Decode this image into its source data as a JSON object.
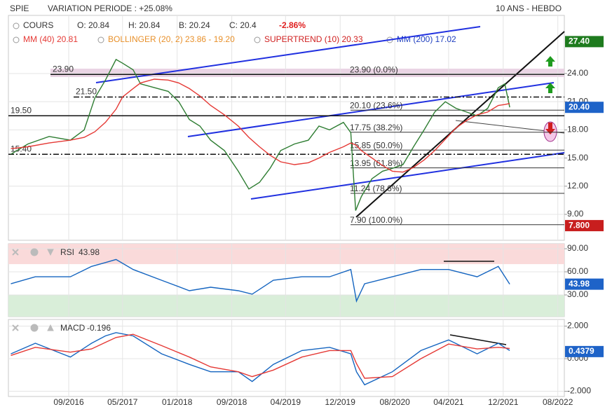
{
  "header": {
    "symbol": "SPIE",
    "variation": "VARIATION PERIODE : +25.08%",
    "period": "10 ANS - HEBDO"
  },
  "legend": {
    "open": "O: 20.84",
    "high": "H: 20.84",
    "low": "B: 20.24",
    "close": "C: 20.4",
    "change": "-2.86%",
    "bollinger": "BOLLINGER (20, 2) 23.86 - 19.20",
    "supertrend": "SUPERTREND (10) 20.33",
    "mm200": "MM (200) 17.02"
  },
  "chart_data": [
    {
      "type": "line",
      "x": [
        2015.96,
        2016.17,
        2016.43,
        2016.69,
        2016.86,
        2016.99,
        2017.12,
        2017.25,
        2017.33,
        2017.46,
        2017.55,
        2017.72,
        2017.89,
        2018.02,
        2018.15,
        2018.28,
        2018.41,
        2018.58,
        2018.75,
        2018.88,
        2019.01,
        2019.14,
        2019.27,
        2019.44,
        2019.61,
        2019.74,
        2019.87,
        2020.04,
        2020.13,
        2020.19,
        2020.26,
        2020.39,
        2020.52,
        2020.64,
        2020.77,
        2020.9,
        2021.03,
        2021.16,
        2021.29,
        2021.42,
        2021.55,
        2021.68,
        2021.81,
        2021.94,
        2022.02,
        2022.08
      ],
      "series": [
        {
          "name": "COURS",
          "color": "#2e7d32",
          "values": [
            15.4,
            16.5,
            17.3,
            16.9,
            18.0,
            21.4,
            23.3,
            25.5,
            25.1,
            24.4,
            22.9,
            22.5,
            22.1,
            21.0,
            19.1,
            18.4,
            16.9,
            15.8,
            13.6,
            11.7,
            12.4,
            13.9,
            15.8,
            16.5,
            16.9,
            18.4,
            18.0,
            18.8,
            17.7,
            9.4,
            10.9,
            12.8,
            13.6,
            13.9,
            14.3,
            16.2,
            18.0,
            19.9,
            21.0,
            20.3,
            19.9,
            19.5,
            20.3,
            22.5,
            22.9,
            20.4
          ]
        },
        {
          "name": "MM (40) 20.81",
          "color": "#e53935",
          "values": [
            16.0,
            16.2,
            16.6,
            16.9,
            17.2,
            17.8,
            18.8,
            20.2,
            21.5,
            22.4,
            23.0,
            23.4,
            23.3,
            23.0,
            22.4,
            21.6,
            20.6,
            19.6,
            18.4,
            17.2,
            16.2,
            15.3,
            14.6,
            14.3,
            14.5,
            15.0,
            15.6,
            16.2,
            16.6,
            16.4,
            15.8,
            15.0,
            14.2,
            13.6,
            13.5,
            14.0,
            14.8,
            15.8,
            17.0,
            18.2,
            19.0,
            19.6,
            19.9,
            20.6,
            20.7,
            20.81
          ]
        }
      ],
      "xlim": [
        2015.93,
        2022.75
      ],
      "ylim": [
        6.24,
        30.19
      ],
      "yticks": [
        {
          "value": 9,
          "label": "9.00"
        },
        {
          "value": 12,
          "label": "12.00"
        },
        {
          "value": 15,
          "label": "15.00"
        },
        {
          "value": 18,
          "label": "18.00"
        },
        {
          "value": 21,
          "label": "21.00"
        },
        {
          "value": 24,
          "label": "24.00"
        }
      ],
      "grid": true,
      "levels": [
        {
          "value": 23.9,
          "label": "23.90",
          "line_style": "solid"
        },
        {
          "value": 21.5,
          "label": "21.50",
          "line_style": "dashdot"
        },
        {
          "value": 19.5,
          "label": "19.50",
          "line_style": "solid"
        },
        {
          "value": 15.4,
          "label": "15.40",
          "line_style": "dashdot"
        }
      ],
      "fibonacci": [
        {
          "value": 23.9,
          "label": "23.90 (0.0%)"
        },
        {
          "value": 20.1,
          "label": "20.10 (23.6%)"
        },
        {
          "value": 17.75,
          "label": "17.75 (38.2%)"
        },
        {
          "value": 15.85,
          "label": "15.85 (50.0%)"
        },
        {
          "value": 13.95,
          "label": "13.95 (61.8%)"
        },
        {
          "value": 11.24,
          "label": "11.24 (78.6%)"
        },
        {
          "value": 7.9,
          "label": "7.90 (100.0%)"
        }
      ],
      "price_tags": [
        {
          "value": 27.4,
          "label": "27.40",
          "color": "#1e7b1e"
        },
        {
          "value": 20.4,
          "label": "20.40",
          "color": "#1e63c8"
        },
        {
          "value": 7.8,
          "label": "7.800",
          "color": "#c81e1e"
        }
      ]
    },
    {
      "type": "line",
      "title": "RSI",
      "x": [
        2015.96,
        2016.26,
        2016.69,
        2016.95,
        2017.12,
        2017.25,
        2017.46,
        2017.81,
        2018.15,
        2018.41,
        2018.75,
        2018.92,
        2019.18,
        2019.53,
        2019.87,
        2020.13,
        2020.2,
        2020.3,
        2020.64,
        2020.99,
        2021.33,
        2021.68,
        2021.94,
        2022.08
      ],
      "series": [
        {
          "name": "RSI",
          "color": "#1565c0",
          "values": [
            44.5,
            53.6,
            53.6,
            67,
            72,
            76,
            63,
            49,
            35.5,
            40,
            35.5,
            31,
            49,
            53.6,
            53.6,
            63,
            22,
            44.5,
            53.6,
            63,
            63,
            53.6,
            67,
            43.98
          ]
        }
      ],
      "value_tag": 43.98,
      "xlim": [
        2015.93,
        2022.75
      ],
      "ylim": [
        1.8,
        96.4
      ],
      "yticks": [
        {
          "value": 30,
          "label": "30.00"
        },
        {
          "value": 60,
          "label": "60.00"
        },
        {
          "value": 90,
          "label": "90.00"
        }
      ],
      "overbought": 70,
      "oversold": 30,
      "grid": true
    },
    {
      "type": "line",
      "title": "MACD",
      "indicator_value": -0.196,
      "x": [
        2015.96,
        2016.26,
        2016.69,
        2016.95,
        2017.12,
        2017.25,
        2017.46,
        2017.81,
        2018.15,
        2018.41,
        2018.75,
        2018.92,
        2019.18,
        2019.53,
        2019.87,
        2020.13,
        2020.2,
        2020.3,
        2020.64,
        2020.99,
        2021.33,
        2021.68,
        2021.94,
        2022.08
      ],
      "series": [
        {
          "name": "MACD",
          "color": "#1565c0",
          "values": [
            0.3,
            0.95,
            0.1,
            0.95,
            1.4,
            1.6,
            1.4,
            0.3,
            -0.35,
            -0.8,
            -0.8,
            -1.4,
            -0.35,
            0.5,
            0.7,
            0.3,
            -0.8,
            -1.6,
            -0.8,
            0.5,
            1.15,
            0.3,
            0.95,
            0.5
          ]
        },
        {
          "color": "#e53935",
          "values": [
            0.2,
            0.7,
            0.4,
            0.6,
            1.0,
            1.3,
            1.5,
            0.8,
            0.1,
            -0.5,
            -0.8,
            -1.1,
            -0.7,
            0.1,
            0.5,
            0.5,
            -0.3,
            -1.2,
            -1.1,
            0.0,
            0.9,
            0.6,
            0.7,
            0.63
          ]
        }
      ],
      "value_tag": 0.4379,
      "xlim": [
        2015.93,
        2022.75
      ],
      "ylim": [
        -2.32,
        2.41
      ],
      "yticks": [
        {
          "value": -2,
          "label": "-2.000"
        },
        {
          "value": 0,
          "label": "0.000"
        },
        {
          "value": 2,
          "label": "2.000"
        }
      ],
      "xticks": [
        {
          "value": 2016.67,
          "label": "09/2016"
        },
        {
          "value": 2017.33,
          "label": "05/2017"
        },
        {
          "value": 2018.0,
          "label": "01/2018"
        },
        {
          "value": 2018.67,
          "label": "09/2018"
        },
        {
          "value": 2019.33,
          "label": "04/2019"
        },
        {
          "value": 2020.0,
          "label": "12/2019"
        },
        {
          "value": 2020.67,
          "label": "08/2020"
        },
        {
          "value": 2021.33,
          "label": "04/2021"
        },
        {
          "value": 2022.0,
          "label": "12/2021"
        },
        {
          "value": 2022.67,
          "label": "08/2022"
        }
      ],
      "grid": true
    }
  ]
}
